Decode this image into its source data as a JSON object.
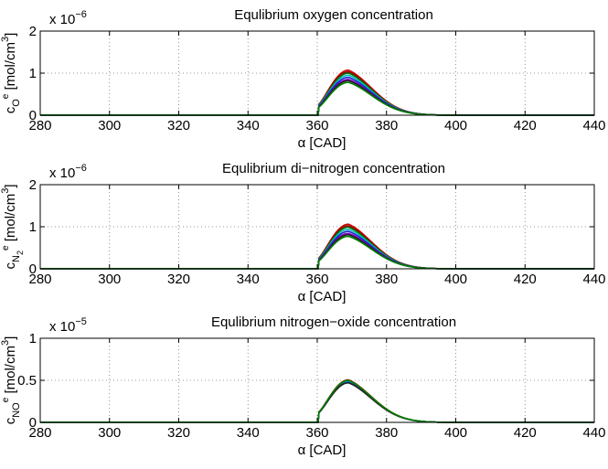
{
  "chart_data": [
    {
      "type": "line",
      "title": "Equlibrium oxygen concentration",
      "xlabel": "α [CAD]",
      "ylabel_main": "c",
      "ylabel_sub": "O",
      "ylabel_sup": "e",
      "ylabel_unit": " [mol/cm",
      "ylabel_unit_sup": "3",
      "ylabel_close": "]",
      "exponent_base": "x 10",
      "exponent_power": "−6",
      "xlim": [
        280,
        440
      ],
      "ylim": [
        0,
        2
      ],
      "xticks": [
        280,
        300,
        320,
        340,
        360,
        380,
        400,
        420,
        440
      ],
      "yticks": [
        0,
        1,
        2
      ],
      "grid": true,
      "curve_start": 360.5,
      "series": [
        {
          "color": "#cc0000",
          "peak": 1.07
        },
        {
          "color": "#990000",
          "peak": 1.03
        },
        {
          "color": "#007700",
          "peak": 1.0
        },
        {
          "color": "#00bfbf",
          "peak": 0.95
        },
        {
          "color": "#1f1fcc",
          "peak": 0.9
        },
        {
          "color": "#7f00bf",
          "peak": 0.85
        },
        {
          "color": "#222222",
          "peak": 0.82
        },
        {
          "color": "#007f00",
          "peak": 0.78
        }
      ]
    },
    {
      "type": "line",
      "title": "Equlibrium di−nitrogen concentration",
      "xlabel": "α [CAD]",
      "ylabel_main": "c",
      "ylabel_sub": "N",
      "ylabel_subsub": "2",
      "ylabel_sup": "e",
      "ylabel_unit": " [mol/cm",
      "ylabel_unit_sup": "3",
      "ylabel_close": "]",
      "exponent_base": "x 10",
      "exponent_power": "−6",
      "xlim": [
        280,
        440
      ],
      "ylim": [
        0,
        2
      ],
      "xticks": [
        280,
        300,
        320,
        340,
        360,
        380,
        400,
        420,
        440
      ],
      "yticks": [
        0,
        1,
        2
      ],
      "grid": true,
      "curve_start": 360.5,
      "series": [
        {
          "color": "#cc0000",
          "peak": 1.06
        },
        {
          "color": "#990000",
          "peak": 1.02
        },
        {
          "color": "#007700",
          "peak": 0.99
        },
        {
          "color": "#00bfbf",
          "peak": 0.94
        },
        {
          "color": "#1f1fcc",
          "peak": 0.89
        },
        {
          "color": "#7f00bf",
          "peak": 0.84
        },
        {
          "color": "#222222",
          "peak": 0.81
        },
        {
          "color": "#007f00",
          "peak": 0.77
        }
      ]
    },
    {
      "type": "line",
      "title": "Equlibrium nitrogen−oxide concentration",
      "xlabel": "α [CAD]",
      "ylabel_main": "c",
      "ylabel_sub": "NO",
      "ylabel_sup": "e",
      "ylabel_unit": " [mol/cm",
      "ylabel_unit_sup": "3",
      "ylabel_close": "]",
      "exponent_base": "x 10",
      "exponent_power": "−5",
      "xlim": [
        280,
        440
      ],
      "ylim": [
        0,
        1
      ],
      "xticks": [
        280,
        300,
        320,
        340,
        360,
        380,
        400,
        420,
        440
      ],
      "yticks": [
        0,
        0.5,
        1
      ],
      "grid": true,
      "curve_start": 360.5,
      "series": [
        {
          "color": "#cc0000",
          "peak": 0.505
        },
        {
          "color": "#007700",
          "peak": 0.495
        },
        {
          "color": "#00bfbf",
          "peak": 0.485
        },
        {
          "color": "#1f1fcc",
          "peak": 0.475
        },
        {
          "color": "#222222",
          "peak": 0.47
        },
        {
          "color": "#007f00",
          "peak": 0.5
        }
      ]
    }
  ]
}
